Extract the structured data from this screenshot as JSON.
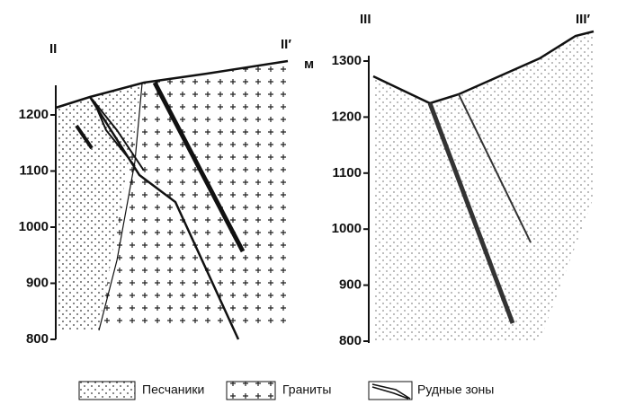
{
  "left_section": {
    "labels": [
      "II",
      "II′"
    ],
    "yticks": [
      1200,
      1100,
      1000,
      900,
      800
    ]
  },
  "right_section": {
    "labels": [
      "III",
      "III′"
    ],
    "unit": "м",
    "yticks": [
      1300,
      1200,
      1100,
      1000,
      900,
      800
    ]
  },
  "legend": [
    "Песчаники",
    "Граниты",
    "Рудные зоны"
  ]
}
